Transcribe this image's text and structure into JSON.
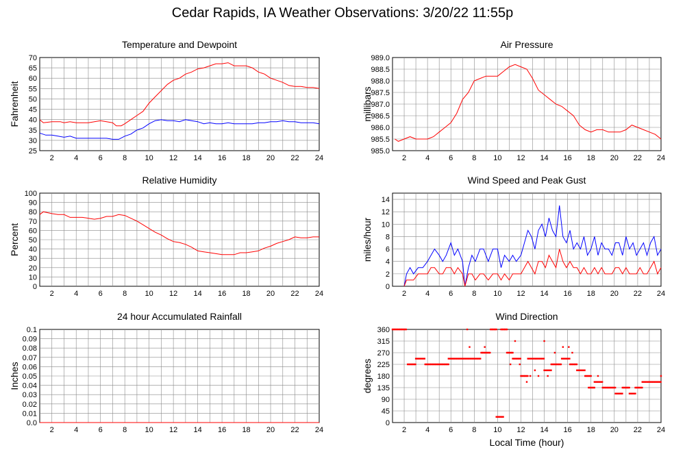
{
  "page_title": "Cedar Rapids, IA Weather Observations: 3/20/22 11:55p",
  "colors": {
    "red": "#ff0000",
    "blue": "#0000ff",
    "grid": "#888888"
  },
  "chart_data": [
    {
      "id": "temp",
      "type": "line",
      "title": "Temperature and Dewpoint",
      "xlabel": "",
      "ylabel": "Fahrenheit",
      "xlim": [
        1,
        24
      ],
      "ylim": [
        25,
        70
      ],
      "yticks": [
        "25",
        "30",
        "35",
        "40",
        "45",
        "50",
        "55",
        "60",
        "65",
        "70"
      ],
      "xticks": [
        "2",
        "4",
        "6",
        "8",
        "10",
        "12",
        "14",
        "16",
        "18",
        "20",
        "22",
        "24"
      ],
      "series": [
        {
          "color": "#ff0000",
          "x": [
            1,
            1.3,
            2,
            2.7,
            3,
            3.5,
            4,
            4.5,
            5,
            5.5,
            6,
            6.5,
            7,
            7.3,
            7.7,
            8,
            8.5,
            9,
            9.5,
            10,
            10.5,
            11,
            11.5,
            12,
            12.5,
            13,
            13.5,
            14,
            14.5,
            15,
            15.5,
            16,
            16.5,
            17,
            17.5,
            18,
            18.5,
            19,
            19.5,
            20,
            20.5,
            21,
            21.5,
            22,
            22.5,
            23,
            23.5,
            24
          ],
          "y": [
            40,
            38.5,
            39,
            39,
            38.5,
            39,
            38.5,
            38.5,
            38.5,
            39,
            39.5,
            39,
            38.5,
            37,
            37,
            38,
            40,
            42,
            44,
            48,
            51,
            54,
            57,
            59,
            60,
            62,
            63,
            64.5,
            65,
            66,
            67,
            67,
            67.5,
            66,
            66,
            66,
            65,
            63,
            62,
            60,
            59,
            58,
            56.5,
            56,
            56,
            55.5,
            55.5,
            55
          ]
        },
        {
          "color": "#0000ff",
          "x": [
            1,
            1.5,
            2,
            2.5,
            3,
            3.5,
            4,
            4.5,
            5,
            5.5,
            6,
            6.5,
            7,
            7.5,
            8,
            8.5,
            9,
            9.5,
            10,
            10.5,
            11,
            11.5,
            12,
            12.5,
            13,
            13.5,
            14,
            14.5,
            15,
            15.5,
            16,
            16.5,
            17,
            17.5,
            18,
            18.5,
            19,
            19.5,
            20,
            20.5,
            21,
            21.5,
            22,
            22.5,
            23,
            23.5,
            24
          ],
          "y": [
            33.5,
            32.5,
            32.5,
            32,
            31.5,
            32,
            31,
            31,
            31,
            31,
            31,
            31,
            30.5,
            30.5,
            32,
            33,
            35,
            36,
            38,
            39.5,
            40,
            39.5,
            39.5,
            39,
            40,
            39.5,
            39,
            38,
            38.5,
            38,
            38,
            38.5,
            38,
            38,
            38,
            38,
            38.5,
            38.5,
            39,
            39,
            39.5,
            39,
            39,
            38.5,
            38.5,
            38.5,
            38
          ]
        }
      ]
    },
    {
      "id": "pres",
      "type": "line",
      "title": "Air Pressure",
      "xlabel": "",
      "ylabel": "millibars",
      "xlim": [
        1,
        24
      ],
      "ylim": [
        985.0,
        989.0
      ],
      "yticks": [
        "985.0",
        "985.5",
        "986.0",
        "986.5",
        "987.0",
        "987.5",
        "988.0",
        "988.5",
        "989.0"
      ],
      "xticks": [
        "2",
        "4",
        "6",
        "8",
        "10",
        "12",
        "14",
        "16",
        "18",
        "20",
        "22",
        "24"
      ],
      "series": [
        {
          "color": "#ff0000",
          "x": [
            1.2,
            1.5,
            2,
            2.5,
            3,
            3.5,
            4,
            4.5,
            5,
            5.5,
            6,
            6.5,
            7,
            7.5,
            8,
            8.5,
            9,
            9.5,
            10,
            10.5,
            11,
            11.5,
            12,
            12.5,
            13,
            13.5,
            14,
            14.5,
            15,
            15.5,
            16,
            16.5,
            17,
            17.5,
            18,
            18.5,
            19,
            19.5,
            20,
            20.5,
            21,
            21.5,
            22,
            22.5,
            23,
            23.5,
            24
          ],
          "y": [
            985.5,
            985.4,
            985.5,
            985.6,
            985.5,
            985.5,
            985.5,
            985.6,
            985.8,
            986.0,
            986.2,
            986.6,
            987.2,
            987.5,
            988.0,
            988.1,
            988.2,
            988.2,
            988.2,
            988.4,
            988.6,
            988.7,
            988.6,
            988.5,
            988.1,
            987.6,
            987.4,
            987.2,
            987.0,
            986.9,
            986.7,
            986.5,
            986.1,
            985.9,
            985.8,
            985.9,
            985.9,
            985.8,
            985.8,
            985.8,
            985.9,
            986.1,
            986.0,
            985.9,
            985.8,
            985.7,
            985.5
          ]
        }
      ]
    },
    {
      "id": "rh",
      "type": "line",
      "title": "Relative Humidity",
      "xlabel": "",
      "ylabel": "Percent",
      "xlim": [
        1,
        24
      ],
      "ylim": [
        0,
        100
      ],
      "yticks": [
        "0",
        "10",
        "20",
        "30",
        "40",
        "50",
        "60",
        "70",
        "80",
        "90",
        "100"
      ],
      "xticks": [
        "2",
        "4",
        "6",
        "8",
        "10",
        "12",
        "14",
        "16",
        "18",
        "20",
        "22",
        "24"
      ],
      "series": [
        {
          "color": "#ff0000",
          "x": [
            1,
            1.3,
            2,
            2.5,
            3,
            3.5,
            4,
            4.5,
            5,
            5.5,
            6,
            6.5,
            7,
            7.5,
            8,
            8.5,
            9,
            9.5,
            10,
            10.5,
            11,
            11.5,
            12,
            12.5,
            13,
            13.5,
            14,
            14.5,
            15,
            15.5,
            16,
            16.5,
            17,
            17.5,
            18,
            18.5,
            19,
            19.5,
            20,
            20.5,
            21,
            21.5,
            22,
            22.5,
            23,
            23.5,
            24
          ],
          "y": [
            77,
            80,
            78,
            77,
            77,
            74,
            74,
            74,
            73,
            72,
            73,
            75,
            75,
            77,
            76,
            73,
            70,
            66,
            62,
            58,
            55,
            51,
            48,
            47,
            45,
            42,
            38,
            37,
            36,
            35,
            34,
            34,
            34,
            36,
            36,
            37,
            38,
            41,
            43,
            46,
            48,
            50,
            53,
            52,
            52,
            53,
            53
          ]
        }
      ]
    },
    {
      "id": "wind",
      "type": "line",
      "title": "Wind Speed and Peak Gust",
      "xlabel": "",
      "ylabel": "miles/hour",
      "xlim": [
        1,
        24
      ],
      "ylim": [
        0,
        15
      ],
      "yticks": [
        "0",
        "2",
        "4",
        "6",
        "8",
        "10",
        "12",
        "14"
      ],
      "xticks": [
        "2",
        "4",
        "6",
        "8",
        "10",
        "12",
        "14",
        "16",
        "18",
        "20",
        "22",
        "24"
      ],
      "series": [
        {
          "color": "#0000ff",
          "x": [
            2,
            2.2,
            2.5,
            2.8,
            3.2,
            3.6,
            4,
            4.3,
            4.6,
            5,
            5.3,
            5.6,
            6,
            6.3,
            6.6,
            7,
            7.2,
            7.5,
            7.8,
            8.1,
            8.5,
            8.8,
            9.2,
            9.6,
            10,
            10.3,
            10.6,
            11,
            11.3,
            11.6,
            12,
            12.3,
            12.6,
            12.9,
            13.2,
            13.5,
            13.8,
            14.1,
            14.4,
            14.7,
            15,
            15.3,
            15.6,
            15.9,
            16.2,
            16.5,
            16.8,
            17.1,
            17.4,
            17.7,
            18,
            18.3,
            18.6,
            18.9,
            19.2,
            19.5,
            19.8,
            20.1,
            20.4,
            20.7,
            21,
            21.3,
            21.6,
            21.9,
            22.2,
            22.5,
            22.8,
            23.1,
            23.4,
            23.7,
            24
          ],
          "y": [
            0,
            2,
            3,
            2,
            3,
            3,
            4,
            5,
            6,
            5,
            4,
            5,
            7,
            5,
            6,
            4,
            0,
            3,
            5,
            4,
            6,
            6,
            4,
            6,
            6,
            3,
            5,
            4,
            5,
            4,
            5,
            7,
            9,
            8,
            6,
            9,
            10,
            8,
            11,
            9,
            8,
            13,
            8,
            7,
            9,
            6,
            7,
            6,
            8,
            5,
            6,
            8,
            5,
            7,
            6,
            6,
            5,
            7,
            7,
            5,
            8,
            6,
            7,
            5,
            6,
            7,
            5,
            7,
            8,
            5,
            6
          ]
        },
        {
          "color": "#ff0000",
          "x": [
            2,
            2.2,
            2.5,
            2.8,
            3.2,
            3.6,
            4,
            4.3,
            4.6,
            5,
            5.3,
            5.6,
            6,
            6.3,
            6.6,
            7,
            7.2,
            7.5,
            7.8,
            8.1,
            8.5,
            8.8,
            9.2,
            9.6,
            10,
            10.3,
            10.6,
            11,
            11.3,
            11.6,
            12,
            12.3,
            12.6,
            12.9,
            13.2,
            13.5,
            13.8,
            14.1,
            14.4,
            14.7,
            15,
            15.3,
            15.6,
            15.9,
            16.2,
            16.5,
            16.8,
            17.1,
            17.4,
            17.7,
            18,
            18.3,
            18.6,
            18.9,
            19.2,
            19.5,
            19.8,
            20.1,
            20.4,
            20.7,
            21,
            21.3,
            21.6,
            21.9,
            22.2,
            22.5,
            22.8,
            23.1,
            23.4,
            23.7,
            24
          ],
          "y": [
            0,
            1,
            1,
            1,
            2,
            2,
            2,
            3,
            3,
            2,
            2,
            3,
            3,
            2,
            3,
            2,
            0,
            2,
            2,
            1,
            2,
            2,
            1,
            2,
            2,
            1,
            2,
            1,
            2,
            2,
            2,
            3,
            4,
            3,
            2,
            4,
            4,
            3,
            5,
            4,
            3,
            6,
            4,
            3,
            4,
            3,
            3,
            2,
            3,
            2,
            2,
            3,
            2,
            3,
            2,
            2,
            2,
            3,
            3,
            2,
            3,
            2,
            2,
            2,
            3,
            2,
            2,
            3,
            4,
            2,
            3
          ]
        }
      ]
    },
    {
      "id": "rain",
      "type": "line",
      "title": "24 hour Accumulated Rainfall",
      "xlabel": "",
      "ylabel": "Inches",
      "xlim": [
        1,
        24
      ],
      "ylim": [
        0,
        0.1
      ],
      "yticks": [
        "0.0",
        "0.01",
        "0.02",
        "0.03",
        "0.04",
        "0.05",
        "0.06",
        "0.07",
        "0.08",
        "0.09",
        "0.1"
      ],
      "xticks": [
        "2",
        "4",
        "6",
        "8",
        "10",
        "12",
        "14",
        "16",
        "18",
        "20",
        "22",
        "24"
      ],
      "series": [
        {
          "color": "#ff0000",
          "x": [
            1,
            24
          ],
          "y": [
            0,
            0
          ]
        }
      ]
    },
    {
      "id": "wdir",
      "type": "scatter",
      "title": "Wind Direction",
      "xlabel": "Local Time (hour)",
      "ylabel": "degrees",
      "xlim": [
        1,
        24
      ],
      "ylim": [
        0,
        360
      ],
      "yticks": [
        "0",
        "45",
        "90",
        "135",
        "180",
        "225",
        "270",
        "315",
        "360"
      ],
      "xticks": [
        "2",
        "4",
        "6",
        "8",
        "10",
        "12",
        "14",
        "16",
        "18",
        "20",
        "22",
        "24"
      ],
      "series": [
        {
          "color": "#ff0000",
          "segments": [
            [
              1.0,
              2.2,
              360
            ],
            [
              2.3,
              3.0,
              225
            ],
            [
              3.0,
              3.8,
              247
            ],
            [
              3.8,
              5.8,
              225
            ],
            [
              5.8,
              6.2,
              247
            ],
            [
              6.2,
              8.6,
              247
            ],
            [
              8.6,
              9.4,
              270
            ],
            [
              9.4,
              9.9,
              360
            ],
            [
              9.9,
              10.5,
              22
            ],
            [
              10.3,
              10.8,
              360
            ],
            [
              10.8,
              11.3,
              270
            ],
            [
              11.3,
              12.0,
              247
            ],
            [
              12.0,
              12.6,
              180
            ],
            [
              12.6,
              13.3,
              247
            ],
            [
              13.3,
              14.0,
              247
            ],
            [
              14.0,
              14.6,
              202
            ],
            [
              14.6,
              15.5,
              225
            ],
            [
              15.5,
              16.2,
              247
            ],
            [
              16.2,
              16.8,
              225
            ],
            [
              16.8,
              17.5,
              202
            ],
            [
              17.5,
              18.0,
              180
            ],
            [
              17.8,
              18.3,
              135
            ],
            [
              18.3,
              19.0,
              157
            ],
            [
              19.0,
              20.1,
              135
            ],
            [
              20.1,
              20.7,
              112
            ],
            [
              20.7,
              21.3,
              135
            ],
            [
              21.3,
              21.8,
              112
            ],
            [
              21.8,
              22.4,
              135
            ],
            [
              22.4,
              24.0,
              157
            ]
          ],
          "points": [
            [
              7.4,
              360
            ],
            [
              7.6,
              292
            ],
            [
              8.9,
              292
            ],
            [
              11.5,
              315
            ],
            [
              11.9,
              225
            ],
            [
              12.5,
              157
            ],
            [
              13.2,
              202
            ],
            [
              13.5,
              180
            ],
            [
              14.0,
              315
            ],
            [
              14.3,
              180
            ],
            [
              14.9,
              270
            ],
            [
              15.6,
              292
            ],
            [
              16.1,
              292
            ],
            [
              16.4,
              270
            ],
            [
              18.6,
              180
            ],
            [
              24.0,
              180
            ],
            [
              11.1,
              225
            ],
            [
              12.8,
              180
            ]
          ]
        }
      ]
    }
  ]
}
